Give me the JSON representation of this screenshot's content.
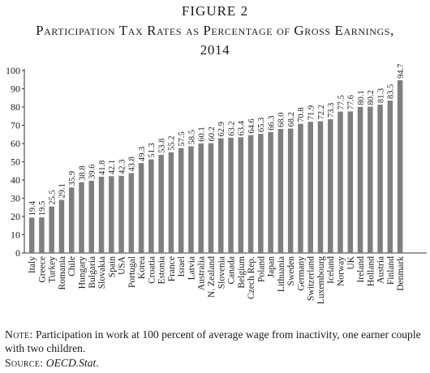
{
  "figure_label": "FIGURE 2",
  "chart_data": {
    "type": "bar",
    "title": "Participation Tax Rates as Percentage of Gross Earnings, 2014",
    "xlabel": "",
    "ylabel": "",
    "ylim": [
      0,
      100
    ],
    "yticks": [
      0,
      10,
      20,
      30,
      40,
      50,
      60,
      70,
      80,
      90,
      100
    ],
    "grid": false,
    "bar_color": "#7f7f7f",
    "categories": [
      "Italy",
      "Greece",
      "Turkey",
      "Romania",
      "Chile",
      "Hungary",
      "Bulgaria",
      "Slovakia",
      "Spain",
      "USA",
      "Portugal",
      "Korea",
      "Croatia",
      "Estonia",
      "France",
      "Israel",
      "Latvia",
      "Australia",
      "N. Zealand",
      "Slovenia",
      "Canada",
      "Belgium",
      "Czech Rep.",
      "Poland",
      "Japan",
      "Lithuania",
      "Sweden",
      "Germany",
      "Switzerland",
      "Luxembourg",
      "Iceland",
      "Norway",
      "UK",
      "Ireland",
      "Holland",
      "Austria",
      "Finland",
      "Denmark"
    ],
    "values": [
      19.4,
      19.5,
      25.5,
      29.1,
      35.9,
      38.8,
      39.6,
      41.8,
      42.1,
      42.3,
      43.8,
      49.3,
      51.3,
      53.8,
      55.2,
      57.5,
      58.5,
      60.1,
      60.2,
      62.9,
      63.2,
      63.4,
      64.6,
      65.3,
      66.3,
      68.0,
      68.2,
      70.8,
      71.9,
      72.2,
      73.3,
      77.5,
      77.6,
      80.1,
      80.2,
      81.3,
      83.5,
      94.7
    ],
    "value_labels": [
      "19.4",
      "19.5",
      "25.5",
      "29.1",
      "35.9",
      "38.8",
      "39.6",
      "41.8",
      "42.1",
      "42.3",
      "43.8",
      "49.3",
      "51.3",
      "53.8",
      "55.2",
      "57.5",
      "58.5",
      "60.1",
      "60.2",
      "62.9",
      "63.2",
      "63.4",
      "64.6",
      "65.3",
      "66.3",
      "68.0",
      "68.2",
      "70.8",
      "71.9",
      "72.2",
      "73.3",
      "77.5",
      "77.6",
      "80.1",
      "80.2",
      "81.3",
      "83.5",
      "94.7"
    ]
  },
  "note": {
    "label": "Note:",
    "text": " Participation in work at 100 percent of average wage from inactivity, one earner couple with two children."
  },
  "source": {
    "label": "Source:",
    "text": "OECD.Stat",
    "end": "."
  }
}
